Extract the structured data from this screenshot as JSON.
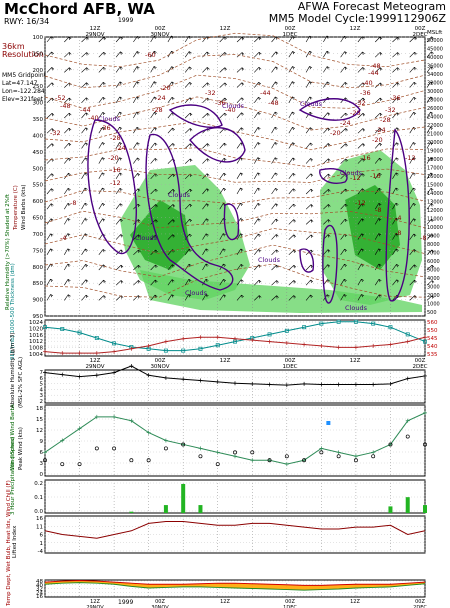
{
  "header": {
    "station": "McChord AFB, WA",
    "rwy": "RWY: 16/34",
    "product": "AFWA Forecast Meteogram",
    "model_cycle": "MM5 Model Cycle:1999112906Z",
    "resolution": "36km Resolution",
    "gridpoint_lines": [
      "MM5 Gridpoint",
      "Lat=47.147",
      "Lon=-122.284",
      "Elev=321feet"
    ],
    "year_top": "1999"
  },
  "time_axis": {
    "top": [
      "12Z\n29NOV",
      "00Z\n30NOV",
      "12Z",
      "00Z\n1DEC",
      "12Z",
      "00Z\n2DEC"
    ],
    "mid": [
      "12Z\n29NOV",
      "00Z\n30NOV",
      "12Z",
      "00Z\n1DEC",
      "12Z",
      "00Z\n2DEC"
    ],
    "bottom": [
      "12Z\n29NOV",
      "00Z\n30NOV",
      "12Z",
      "00Z\n1DEC",
      "12Z",
      "00Z\n2DEC"
    ],
    "year_bottom": "1999"
  },
  "panels": {
    "upper": {
      "left_label": "Relative Humidity (>70%) Shaded at 2%ft",
      "left_label2": "Temperature (C)",
      "left_label3": "Wind Barbs (kts)",
      "pressure_ticks": [
        "100",
        "150",
        "200",
        "250",
        "300",
        "350",
        "400",
        "450",
        "500",
        "550",
        "600",
        "650",
        "700",
        "750",
        "800",
        "850",
        "900",
        "950"
      ],
      "right_units": "MSLft",
      "height_ticks": [
        "50000",
        "45000",
        "40000",
        "36000",
        "34000",
        "32000",
        "30000",
        "28000",
        "26000",
        "24000",
        "22000",
        "21000",
        "20000",
        "19000",
        "18000",
        "17000",
        "16000",
        "15000",
        "14000",
        "13000",
        "12000",
        "11000",
        "10000",
        "9000",
        "8000",
        "7000",
        "6000",
        "5000",
        "4000",
        "3000",
        "2000",
        "1000",
        "500"
      ],
      "cloud_label": "Clouds",
      "temp_labels": [
        "-60",
        "-52",
        "-48",
        "-44",
        "-40",
        "-36",
        "-32",
        "-28",
        "-24",
        "-20",
        "-16",
        "-12",
        "-8",
        "-4",
        "-20",
        "-24",
        "-28",
        "-32",
        "-36",
        "-40",
        "-44",
        "-48",
        "-36",
        "-32",
        "-28",
        "-24",
        "-20",
        "-16",
        "-12",
        "-8",
        "-4",
        "-16",
        "-12",
        "-8",
        "-20",
        "-24",
        "-28",
        "-32",
        "-36",
        "-40",
        "-44",
        "-48",
        "-12",
        "-8"
      ]
    },
    "slp": {
      "left_label": "SLP (mb) 1000-500 Thickness (dm)",
      "ticks": [
        "1024",
        "1020",
        "1016",
        "1012",
        "1008",
        "1004"
      ],
      "right_ticks": [
        "560",
        "550",
        "545",
        "540",
        "535"
      ]
    },
    "humidity": {
      "left_label": "Absolute Humidity (g/m^3)",
      "left_label2": "(MSL-2% SFC AGL)",
      "ticks": [
        "7",
        "6",
        "5",
        "4",
        "3",
        "2"
      ]
    },
    "wind": {
      "left_label": "Wind Speed Wind Barbs",
      "left_label2": "Peak Wind (kts)",
      "ticks": [
        "18",
        "15",
        "12",
        "9",
        "6",
        "3",
        "0"
      ]
    },
    "precip": {
      "left_label": "3 Hour Precipitation (inches)",
      "ticks": [
        "0.2",
        "0.1",
        "0.0"
      ]
    },
    "lifted": {
      "left_label": "Lifted Index",
      "ticks": [
        "16",
        "11",
        "6",
        "1",
        "-4"
      ]
    },
    "temp": {
      "left_label": "Temp Dwpt, Wet Bulb, Heat Idx, Wind Chill (F)",
      "ticks": [
        "48",
        "40",
        "32",
        "24",
        "16"
      ]
    }
  },
  "chart_data": {
    "type": "line",
    "x": [
      "12Z 29NOV",
      "15Z",
      "18Z",
      "21Z",
      "00Z 30NOV",
      "03Z",
      "06Z",
      "09Z",
      "12Z",
      "15Z",
      "18Z",
      "21Z",
      "00Z 1DEC",
      "03Z",
      "06Z",
      "09Z",
      "12Z",
      "15Z",
      "18Z",
      "21Z",
      "00Z 2DEC",
      "03Z",
      "06Z"
    ],
    "series": [
      {
        "name": "SLP (mb)",
        "values": [
          1020,
          1019,
          1017,
          1014,
          1011,
          1009,
          1008,
          1007,
          1007,
          1008,
          1010,
          1012,
          1014,
          1016,
          1018,
          1020,
          1022,
          1023,
          1023,
          1022,
          1020,
          1016,
          1012
        ]
      },
      {
        "name": "1000-500 Thickness (dm)",
        "values": [
          538,
          537,
          537,
          537,
          538,
          540,
          542,
          545,
          547,
          548,
          548,
          547,
          546,
          545,
          544,
          543,
          542,
          541,
          541,
          542,
          543,
          545,
          548
        ]
      },
      {
        "name": "Absolute Humidity (g/m^3)",
        "values": [
          6.6,
          6.3,
          6.0,
          6.2,
          6.6,
          7.6,
          6.2,
          5.8,
          5.6,
          5.4,
          5.2,
          5.0,
          4.9,
          4.8,
          4.7,
          4.9,
          4.8,
          4.8,
          4.8,
          4.8,
          4.9,
          5.7,
          6.1
        ]
      },
      {
        "name": "Wind Speed (kts)",
        "values": [
          6,
          9,
          12,
          15,
          15,
          14,
          11,
          9,
          8,
          7,
          6,
          5,
          4,
          4,
          3,
          4,
          7,
          6,
          5,
          6,
          8,
          14,
          16
        ]
      },
      {
        "name": "Peak Wind (kts)",
        "values": [
          4,
          3,
          3,
          7,
          7,
          4,
          4,
          7,
          8,
          5,
          3,
          6,
          6,
          4,
          5,
          4,
          6,
          5,
          4,
          5,
          8,
          10,
          8
        ]
      },
      {
        "name": "3 Hour Precipitation (inches)",
        "values": [
          0.0,
          0.0,
          0.0,
          0.0,
          0.0,
          0.01,
          0.0,
          0.06,
          0.22,
          0.06,
          0.0,
          0.0,
          0.0,
          0.0,
          0.0,
          0.0,
          0.0,
          0.0,
          0.0,
          0.0,
          0.05,
          0.12,
          0.06
        ]
      },
      {
        "name": "Lifted Index",
        "values": [
          8,
          6,
          5,
          4,
          6,
          8,
          12,
          13,
          13,
          12,
          11,
          11,
          12,
          12,
          11,
          10,
          9,
          9,
          10,
          10,
          11,
          6,
          8
        ]
      },
      {
        "name": "Temp (F)",
        "values": [
          44,
          46,
          47,
          46,
          44,
          42,
          40,
          40,
          40,
          41,
          42,
          42,
          41,
          40,
          39,
          38,
          38,
          39,
          40,
          40,
          40,
          42,
          44
        ]
      },
      {
        "name": "Dwpt (F)",
        "values": [
          40,
          42,
          43,
          42,
          40,
          36,
          33,
          34,
          35,
          35,
          34,
          33,
          32,
          31,
          30,
          29,
          30,
          31,
          33,
          34,
          35,
          38,
          41
        ]
      }
    ],
    "ylim_slp": [
      1004,
      1024
    ],
    "ylim_humidity": [
      2,
      7
    ],
    "ylim_wind": [
      0,
      18
    ],
    "ylim_precip": [
      0,
      0.25
    ],
    "ylim_lifted": [
      -4,
      16
    ],
    "ylim_temp": [
      16,
      48
    ]
  }
}
